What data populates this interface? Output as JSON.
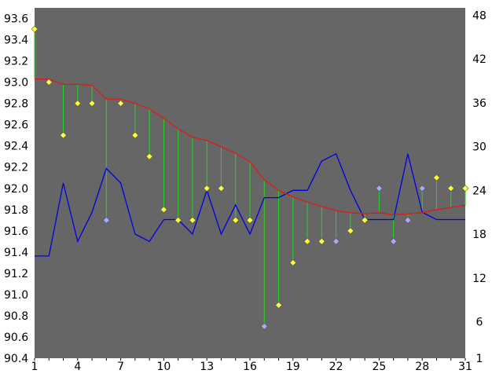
{
  "chart_data": {
    "type": "line",
    "colors": {
      "plot_background": "#666666",
      "page_background": "#ffffff",
      "trend_line": "#e01818",
      "secondary_line": "#0000e0",
      "deviation_stems": "#22d822",
      "marker_yellow": "#ffff33",
      "marker_lavender": "#aaaaff"
    },
    "x": [
      1,
      2,
      3,
      4,
      5,
      6,
      7,
      8,
      9,
      10,
      11,
      12,
      13,
      14,
      15,
      16,
      17,
      18,
      19,
      20,
      21,
      22,
      23,
      24,
      25,
      26,
      27,
      28,
      29,
      30,
      31
    ],
    "xlim": [
      1,
      31
    ],
    "x_ticks": [
      1,
      4,
      7,
      10,
      13,
      16,
      19,
      22,
      25,
      28,
      31
    ],
    "x_tick_labels": [
      "1",
      "4",
      "7",
      "10",
      "13",
      "16",
      "19",
      "22",
      "25",
      "28",
      "31"
    ],
    "ylim": [
      90.4,
      93.7
    ],
    "y_ticks": [
      90.4,
      90.6,
      90.8,
      91.0,
      91.2,
      91.4,
      91.6,
      91.8,
      92.0,
      92.2,
      92.4,
      92.6,
      92.8,
      93.0,
      93.2,
      93.4,
      93.6
    ],
    "y_tick_labels": [
      "90.4",
      "90.6",
      "90.8",
      "91.0",
      "91.2",
      "91.4",
      "91.6",
      "91.8",
      "92.0",
      "92.2",
      "92.4",
      "92.6",
      "92.8",
      "93.0",
      "93.2",
      "93.4",
      "93.6"
    ],
    "y2lim": [
      1,
      49
    ],
    "y2_ticks": [
      1,
      6,
      12,
      18,
      24,
      30,
      36,
      42,
      48
    ],
    "y2_tick_labels": [
      "1",
      "6",
      "12",
      "18",
      "24",
      "30",
      "36",
      "42",
      "48"
    ],
    "series": [
      {
        "role": "points",
        "axis": "left",
        "values": [
          93.5,
          93.0,
          92.5,
          92.8,
          92.8,
          91.7,
          92.8,
          92.5,
          92.3,
          91.8,
          91.7,
          91.7,
          92.0,
          92.0,
          91.7,
          91.7,
          90.7,
          90.9,
          91.3,
          91.5,
          91.5,
          91.5,
          91.6,
          91.7,
          92.0,
          91.5,
          91.7,
          92.0,
          92.1,
          92.0,
          92.0
        ],
        "marker_colors": [
          "yellow",
          "yellow",
          "yellow",
          "yellow",
          "yellow",
          "lavender",
          "yellow",
          "yellow",
          "yellow",
          "yellow",
          "yellow",
          "yellow",
          "yellow",
          "yellow",
          "yellow",
          "yellow",
          "lavender",
          "yellow",
          "yellow",
          "yellow",
          "yellow",
          "lavender",
          "yellow",
          "yellow",
          "lavender",
          "lavender",
          "lavender",
          "lavender",
          "yellow",
          "yellow",
          "yellow"
        ]
      },
      {
        "role": "trend",
        "axis": "left",
        "values": [
          93.03,
          93.03,
          92.98,
          92.98,
          92.97,
          92.84,
          92.84,
          92.8,
          92.75,
          92.66,
          92.56,
          92.48,
          92.45,
          92.39,
          92.33,
          92.25,
          92.08,
          91.98,
          91.92,
          91.87,
          91.83,
          91.79,
          91.77,
          91.76,
          91.77,
          91.75,
          91.76,
          91.77,
          91.8,
          91.82,
          91.84
        ]
      },
      {
        "role": "secondary",
        "axis": "right",
        "values": [
          15,
          15,
          25,
          17,
          21,
          27,
          25,
          18,
          17,
          20,
          20,
          18,
          24,
          18,
          22,
          18,
          23,
          23,
          24,
          24,
          28,
          29,
          24,
          20,
          20,
          20,
          29,
          21,
          20,
          20,
          20
        ]
      }
    ]
  }
}
